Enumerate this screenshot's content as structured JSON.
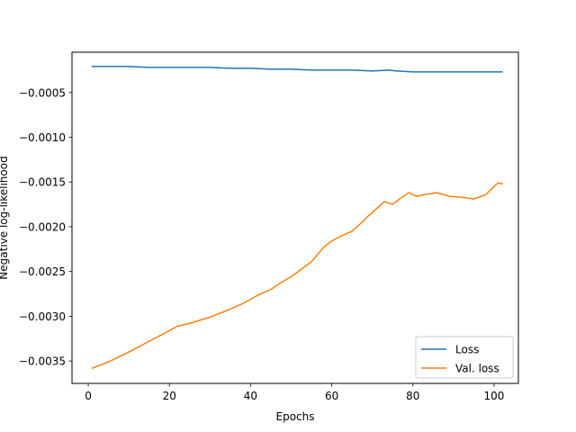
{
  "chart_data": {
    "type": "line",
    "title": "",
    "xlabel": "Epochs",
    "ylabel": "Negative log-likelihood",
    "xlim": [
      -4.0,
      106.0
    ],
    "ylim": [
      -0.00375,
      -5e-05
    ],
    "xticks": [
      0,
      20,
      40,
      60,
      80,
      100
    ],
    "xtick_labels": [
      "0",
      "20",
      "40",
      "60",
      "80",
      "100"
    ],
    "yticks": [
      -0.0035,
      -0.003,
      -0.0025,
      -0.002,
      -0.0015,
      -0.001,
      -0.0005
    ],
    "ytick_labels": [
      "−0.0035",
      "−0.0030",
      "−0.0025",
      "−0.0020",
      "−0.0015",
      "−0.0010",
      "−0.0005"
    ],
    "grid": false,
    "legend_position": "lower right",
    "series": [
      {
        "name": "Loss",
        "color": "#1f77b4",
        "x": [
          1,
          5,
          10,
          15,
          20,
          25,
          30,
          35,
          40,
          45,
          50,
          55,
          60,
          65,
          70,
          74,
          76,
          80,
          85,
          90,
          95,
          100,
          102
        ],
        "y": [
          -0.00021,
          -0.00021,
          -0.00021,
          -0.00022,
          -0.00022,
          -0.00022,
          -0.00022,
          -0.00023,
          -0.00023,
          -0.00024,
          -0.00024,
          -0.00025,
          -0.00025,
          -0.00025,
          -0.00026,
          -0.00025,
          -0.00026,
          -0.00027,
          -0.00027,
          -0.00027,
          -0.00027,
          -0.00027,
          -0.00027
        ]
      },
      {
        "name": "Val. loss",
        "color": "#ff7f0e",
        "x": [
          1,
          5,
          10,
          15,
          20,
          22,
          25,
          30,
          35,
          38,
          40,
          42,
          45,
          48,
          50,
          55,
          58,
          60,
          62,
          65,
          67,
          69,
          71,
          73,
          75,
          77,
          79,
          81,
          83,
          86,
          89,
          92,
          95,
          98,
          100,
          101,
          102
        ],
        "y": [
          -0.00358,
          -0.00351,
          -0.0034,
          -0.00328,
          -0.00316,
          -0.00311,
          -0.00308,
          -0.00301,
          -0.00292,
          -0.00286,
          -0.00281,
          -0.00276,
          -0.0027,
          -0.00261,
          -0.00256,
          -0.00239,
          -0.00223,
          -0.00216,
          -0.00211,
          -0.00205,
          -0.00197,
          -0.00188,
          -0.0018,
          -0.00172,
          -0.00175,
          -0.00168,
          -0.00162,
          -0.00166,
          -0.00164,
          -0.00162,
          -0.00166,
          -0.00167,
          -0.00169,
          -0.00164,
          -0.00155,
          -0.00151,
          -0.00152
        ]
      }
    ]
  }
}
